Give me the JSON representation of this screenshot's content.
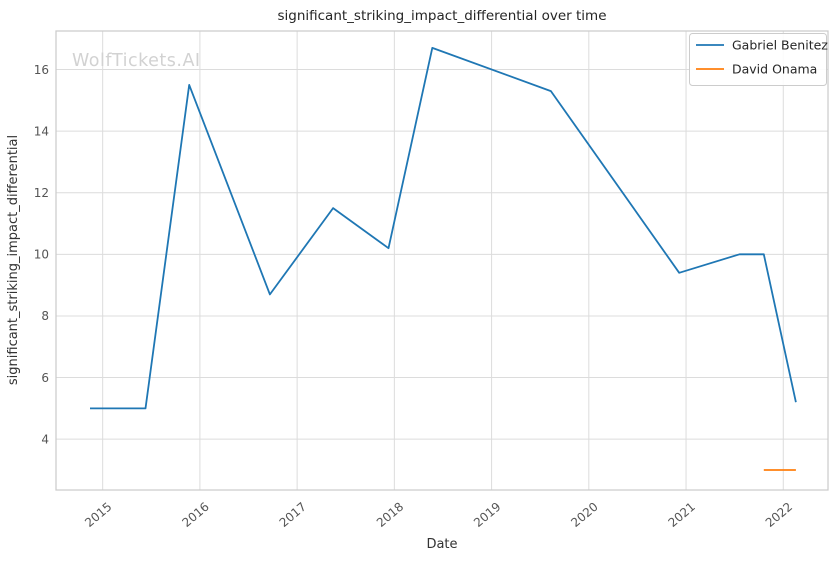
{
  "watermark": "WolfTickets.AI",
  "chart_data": {
    "type": "line",
    "title": "significant_striking_impact_differential over time",
    "xlabel": "Date",
    "ylabel": "significant_striking_impact_differential",
    "xlim": [
      2014.52,
      2022.46
    ],
    "ylim": [
      2.35,
      17.25
    ],
    "xticks": [
      2015,
      2016,
      2017,
      2018,
      2019,
      2020,
      2021,
      2022
    ],
    "yticks": [
      4,
      6,
      8,
      10,
      12,
      14,
      16
    ],
    "grid": true,
    "legend_position": "upper right",
    "series": [
      {
        "name": "Gabriel Benitez",
        "color": "#1f77b4",
        "x": [
          2014.87,
          2015.44,
          2015.89,
          2016.72,
          2017.37,
          2017.94,
          2018.39,
          2019.61,
          2020.93,
          2021.55,
          2021.8,
          2022.13
        ],
        "y": [
          5.0,
          5.0,
          15.5,
          8.7,
          11.5,
          10.2,
          16.7,
          15.3,
          9.4,
          10.0,
          10.0,
          5.2
        ]
      },
      {
        "name": "David Onama",
        "color": "#ff7f0e",
        "x": [
          2021.8,
          2022.13
        ],
        "y": [
          3.0,
          3.0
        ]
      }
    ]
  },
  "colors": {
    "grid": "#dcdcdc",
    "spine": "#cccccc",
    "tick_label": "#555555",
    "title": "#262626",
    "watermark": "#d2d2d2",
    "background": "#ffffff"
  }
}
